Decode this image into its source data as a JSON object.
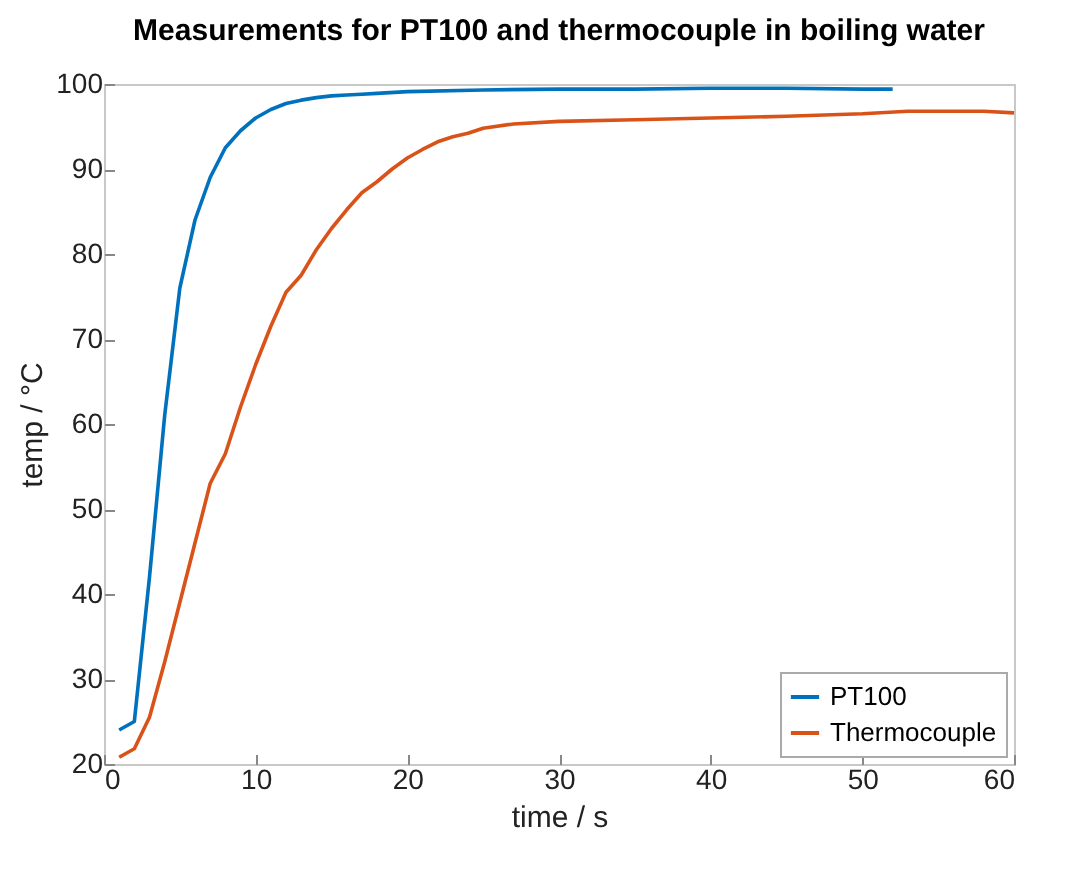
{
  "chart_data": {
    "type": "line",
    "title": "Measurements for PT100 and thermocouple in boiling water",
    "xlabel": "time / s",
    "ylabel": "temp / °C",
    "xlim": [
      0,
      60
    ],
    "xticks": [
      0,
      10,
      20,
      30,
      40,
      50,
      60
    ],
    "ylim": [
      20,
      100
    ],
    "yticks": [
      20,
      30,
      40,
      50,
      60,
      70,
      80,
      90,
      100
    ],
    "grid": false,
    "legend": "bottom right",
    "marker": "none",
    "line_style": "solid",
    "series": [
      {
        "name": "PT100",
        "color": "#0072bd",
        "x": [
          1,
          2,
          3,
          4,
          5,
          6,
          7,
          8,
          9,
          10,
          11,
          12,
          13,
          14,
          15,
          16,
          17,
          18,
          20,
          25,
          30,
          35,
          40,
          45,
          50,
          52
        ],
        "values": [
          24,
          25,
          42,
          61,
          76,
          84,
          89,
          92.5,
          94.5,
          96,
          97,
          97.7,
          98.1,
          98.4,
          98.6,
          98.7,
          98.8,
          98.9,
          99.1,
          99.3,
          99.4,
          99.4,
          99.5,
          99.5,
          99.4,
          99.4
        ]
      },
      {
        "name": "Thermocouple",
        "color": "#d95319",
        "x": [
          1,
          2,
          3,
          4,
          5,
          6,
          7,
          8,
          9,
          10,
          11,
          12,
          13,
          14,
          15,
          16,
          17,
          18,
          19,
          20,
          21,
          22,
          23,
          24,
          25,
          27,
          30,
          35,
          40,
          45,
          50,
          53,
          56,
          58,
          60
        ],
        "values": [
          20.8,
          21.8,
          25.5,
          32,
          39,
          46,
          53,
          56.5,
          62,
          67,
          71.5,
          75.5,
          77.5,
          80.5,
          83,
          85.2,
          87.2,
          88.5,
          90,
          91.3,
          92.3,
          93.2,
          93.8,
          94.2,
          94.8,
          95.3,
          95.6,
          95.8,
          96,
          96.2,
          96.5,
          96.8,
          96.8,
          96.8,
          96.6
        ]
      }
    ]
  }
}
